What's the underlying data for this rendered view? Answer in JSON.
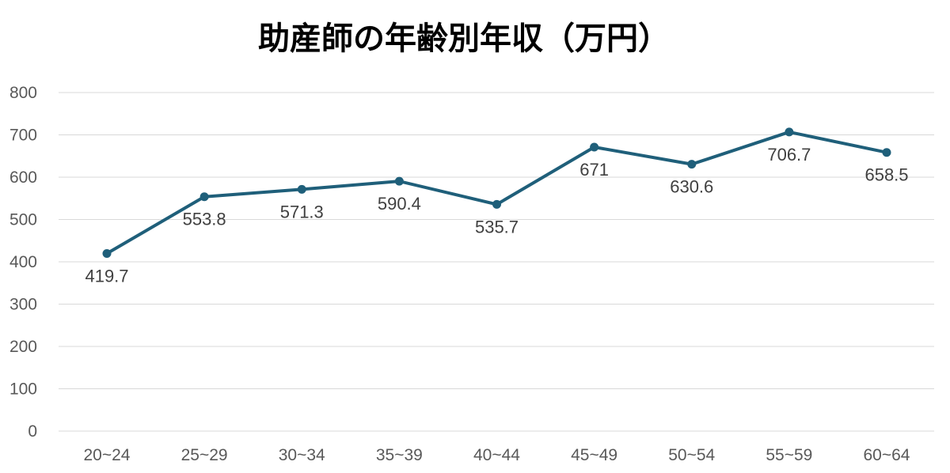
{
  "chart_data": {
    "type": "line",
    "title": "助産師の年齢別年収（万円）",
    "xlabel": "",
    "ylabel": "",
    "categories": [
      "20~24",
      "25~29",
      "30~34",
      "35~39",
      "40~44",
      "45~49",
      "50~54",
      "55~59",
      "60~64"
    ],
    "series": [
      {
        "values": [
          419.7,
          553.8,
          571.3,
          590.4,
          535.7,
          671,
          630.6,
          706.7,
          658.5
        ],
        "color": "#1f5f7a"
      }
    ],
    "data_labels": [
      "419.7",
      "553.8",
      "571.3",
      "590.4",
      "535.7",
      "671",
      "630.6",
      "706.7",
      "658.5"
    ],
    "ylim": [
      0,
      800
    ],
    "yticks": [
      "0",
      "100",
      "200",
      "300",
      "400",
      "500",
      "600",
      "700",
      "800"
    ],
    "grid": true,
    "legend": "none"
  }
}
